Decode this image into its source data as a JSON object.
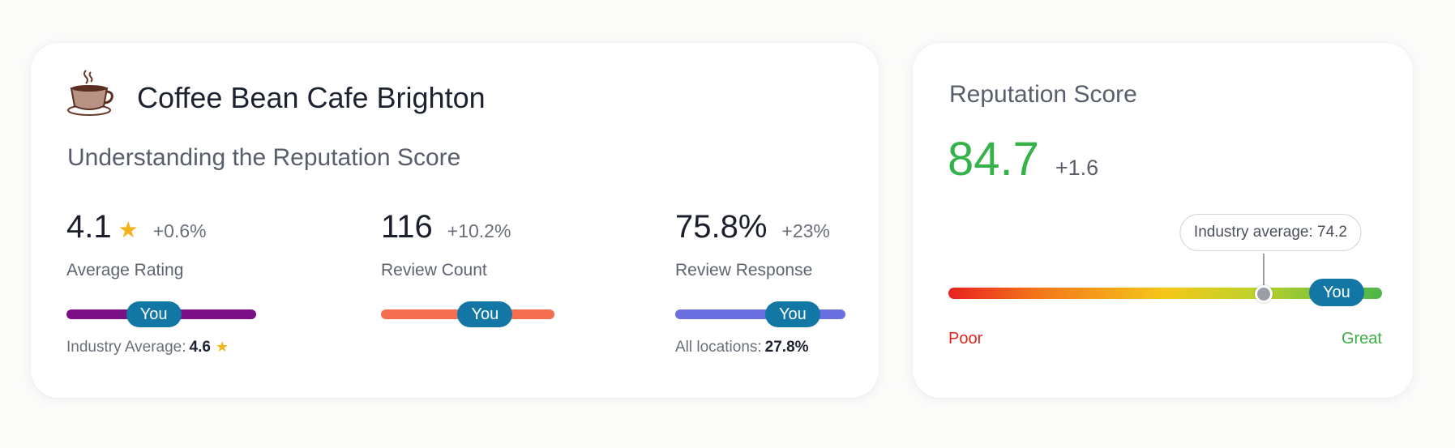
{
  "business": {
    "name": "Coffee Bean Cafe Brighton",
    "icon": "coffee-cup-icon"
  },
  "subtitle": "Understanding the Reputation Score",
  "metrics": {
    "rating": {
      "value": "4.1",
      "change": "+0.6%",
      "label": "Average Rating",
      "star": "★",
      "you_label": "You",
      "you_fraction": 0.46,
      "bar_color": "#7b0f86",
      "footnote_label": "Industry Average:",
      "footnote_value": "4.6"
    },
    "count": {
      "value": "116",
      "change": "+10.2%",
      "label": "Review Count",
      "you_label": "You",
      "you_fraction": 0.6,
      "bar_color": "#f46e4f"
    },
    "response": {
      "value": "75.8%",
      "change": "+23%",
      "label": "Review Response",
      "you_label": "You",
      "you_fraction": 0.69,
      "bar_color": "#6b6fe0",
      "footnote_label": "All locations:",
      "footnote_value": "27.8%"
    }
  },
  "reputation": {
    "title": "Reputation Score",
    "score": "84.7",
    "change": "+1.6",
    "score_color": "#35b34a",
    "industry_average_label": "Industry average: 74.2",
    "industry_fraction": 0.728,
    "you_label": "You",
    "you_fraction": 0.895,
    "low_label": "Poor",
    "high_label": "Great"
  }
}
